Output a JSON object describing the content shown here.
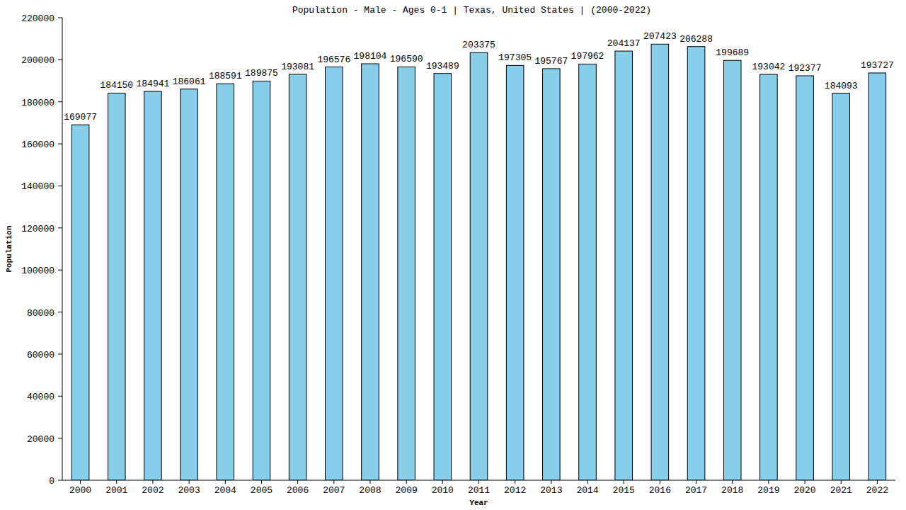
{
  "chart_data": {
    "type": "bar",
    "title": "Population - Male - Ages 0-1 | Texas, United States |  (2000-2022)",
    "x_label": "Year",
    "y_label": "Population",
    "categories": [
      "2000",
      "2001",
      "2002",
      "2003",
      "2004",
      "2005",
      "2006",
      "2007",
      "2008",
      "2009",
      "2010",
      "2011",
      "2012",
      "2013",
      "2014",
      "2015",
      "2016",
      "2017",
      "2018",
      "2019",
      "2020",
      "2021",
      "2022"
    ],
    "values": [
      169077,
      184150,
      184941,
      186061,
      188591,
      189875,
      193081,
      196576,
      198104,
      196590,
      193489,
      203375,
      197305,
      195767,
      197962,
      204137,
      207423,
      206288,
      199689,
      193042,
      192377,
      184093,
      193727
    ],
    "color": "#87ceeb",
    "ylim": [
      0,
      220000
    ],
    "yticks": [
      0,
      20000,
      40000,
      60000,
      80000,
      100000,
      120000,
      140000,
      160000,
      180000,
      200000,
      220000
    ],
    "grid": false,
    "data_labels": true
  }
}
